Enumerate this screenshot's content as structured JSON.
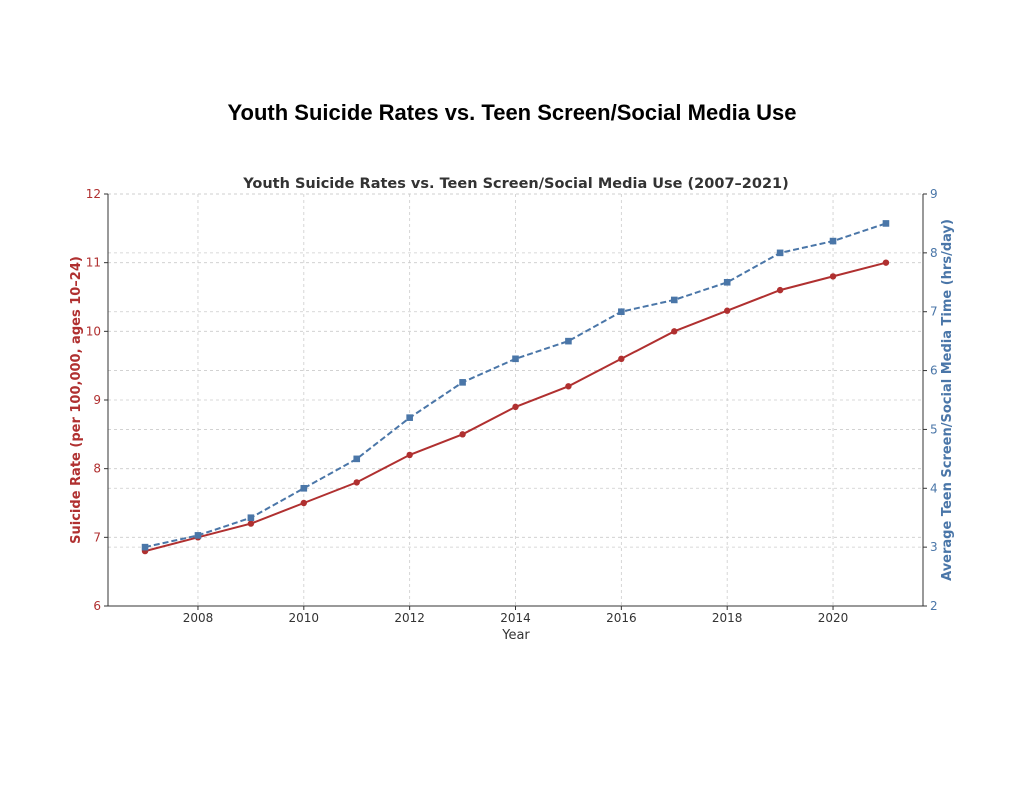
{
  "page_title": "Youth Suicide Rates vs. Teen Screen/Social Media Use",
  "chart_data": {
    "type": "line",
    "title": "Youth Suicide Rates vs. Teen Screen/Social Media Use (2007–2021)",
    "xlabel": "Year",
    "ylabel_left": "Suicide Rate (per 100,000, ages 10–24)",
    "ylabel_right": "Average Teen Screen/Social Media Time (hrs/day)",
    "x": [
      2007,
      2008,
      2009,
      2010,
      2011,
      2012,
      2013,
      2014,
      2015,
      2016,
      2017,
      2018,
      2019,
      2020,
      2021
    ],
    "xlim": [
      2006.3,
      2021.7
    ],
    "x_ticks": [
      2008,
      2010,
      2012,
      2014,
      2016,
      2018,
      2020
    ],
    "ylim_left": [
      6,
      12
    ],
    "y_ticks_left": [
      6,
      7,
      8,
      9,
      10,
      11,
      12
    ],
    "ylim_right": [
      2,
      9
    ],
    "y_ticks_right": [
      2,
      3,
      4,
      5,
      6,
      7,
      8,
      9
    ],
    "grid": true,
    "series": [
      {
        "name": "Suicide Rate",
        "axis": "left",
        "color": "#b03030",
        "line_style": "solid",
        "marker": "circle",
        "values": [
          6.8,
          7.0,
          7.2,
          7.5,
          7.8,
          8.2,
          8.5,
          8.9,
          9.2,
          9.6,
          10.0,
          10.3,
          10.6,
          10.8,
          11.0
        ]
      },
      {
        "name": "Screen/Social Media Time",
        "axis": "right",
        "color": "#4a76a8",
        "line_style": "dashed",
        "marker": "square",
        "values": [
          3.0,
          3.2,
          3.5,
          4.0,
          4.5,
          5.2,
          5.8,
          6.2,
          6.5,
          7.0,
          7.2,
          7.5,
          8.0,
          8.2,
          8.5
        ]
      }
    ]
  }
}
